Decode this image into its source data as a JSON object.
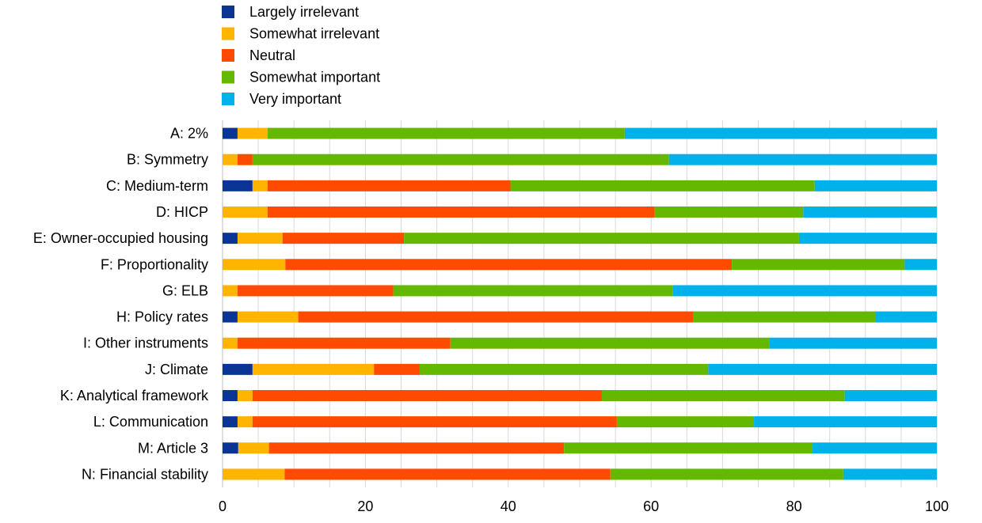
{
  "chart_data": {
    "type": "bar",
    "orientation": "horizontal",
    "stacked": true,
    "legend_position": "top-left",
    "grid": "vertical lines",
    "xlim": [
      0,
      100
    ],
    "x_ticks": [
      0,
      20,
      40,
      60,
      80,
      100
    ],
    "x_tick_labels": [
      "0",
      "20",
      "40",
      "60",
      "80",
      "100"
    ],
    "categories": [
      "A: 2%",
      "B: Symmetry",
      "C: Medium-term",
      "D: HICP",
      "E: Owner-occupied housing",
      "F: Proportionality",
      "G: ELB",
      "H: Policy rates",
      "I: Other instruments",
      "J: Climate",
      "K: Analytical framework",
      "L: Communication",
      "M: Article 3",
      "N: Financial stability"
    ],
    "series": [
      {
        "name": "Largely irrelevant",
        "color": "#0a3594",
        "values": [
          2.1,
          0,
          4.2,
          0,
          2.1,
          0,
          0,
          2.1,
          0,
          4.2,
          2.1,
          2.1,
          2.2,
          0
        ]
      },
      {
        "name": "Somewhat irrelevant",
        "color": "#ffb400",
        "values": [
          4.2,
          2.1,
          2.1,
          6.3,
          6.3,
          8.8,
          2.1,
          8.5,
          2.1,
          17.0,
          2.1,
          2.1,
          4.3,
          8.7
        ]
      },
      {
        "name": "Neutral",
        "color": "#ff4b00",
        "values": [
          0,
          2.1,
          34.0,
          54.2,
          17.0,
          62.5,
          21.8,
          55.3,
          29.8,
          6.4,
          48.9,
          51.0,
          41.3,
          45.6
        ]
      },
      {
        "name": "Somewhat important",
        "color": "#65b800",
        "values": [
          50.0,
          58.3,
          42.6,
          20.8,
          55.3,
          24.2,
          39.1,
          25.5,
          44.7,
          40.4,
          34.0,
          19.2,
          34.8,
          32.6
        ]
      },
      {
        "name": "Very important",
        "color": "#00b1ea",
        "values": [
          43.7,
          37.5,
          17.1,
          18.7,
          19.3,
          4.5,
          37.0,
          8.6,
          23.4,
          32.0,
          12.9,
          25.6,
          17.4,
          13.1
        ]
      }
    ]
  }
}
